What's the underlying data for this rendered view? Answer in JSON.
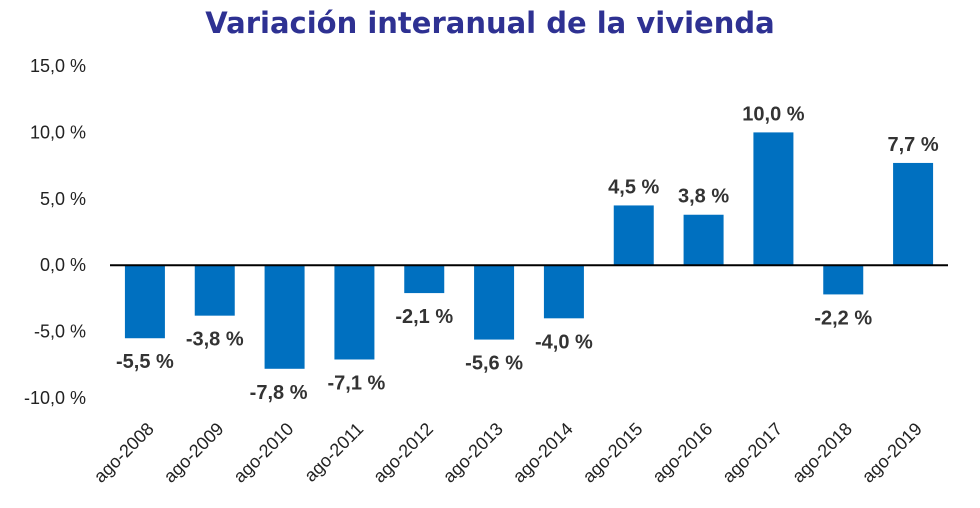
{
  "title": "Variación interanual de la vivienda",
  "chart_data": {
    "type": "bar",
    "title": "Variación interanual de la vivienda",
    "categories": [
      "ago-2008",
      "ago-2009",
      "ago-2010",
      "ago-2011",
      "ago-2012",
      "ago-2013",
      "ago-2014",
      "ago-2015",
      "ago-2016",
      "ago-2017",
      "ago-2018",
      "ago-2019"
    ],
    "values": [
      -5.5,
      -3.8,
      -7.8,
      -7.1,
      -2.1,
      -5.6,
      -4.0,
      4.5,
      3.8,
      10.0,
      -2.2,
      7.7
    ],
    "data_labels": [
      "-5,5 %",
      "-3,8 %",
      "-7,8 %",
      "-7,1 %",
      "-2,1 %",
      "-5,6 %",
      "-4,0 %",
      "4,5 %",
      "3,8 %",
      "10,0 %",
      "-2,2 %",
      "7,7 %"
    ],
    "y_ticks": [
      15,
      10,
      5,
      0,
      -5,
      -10
    ],
    "y_tick_labels": [
      "15,0 %",
      "10,0 %",
      "5,0 %",
      "0,0 %",
      "-5,0 %",
      "-10,0 %"
    ],
    "ylim": [
      -10,
      15
    ],
    "bar_color": "#0070c0",
    "grid": false,
    "legend": "none"
  }
}
